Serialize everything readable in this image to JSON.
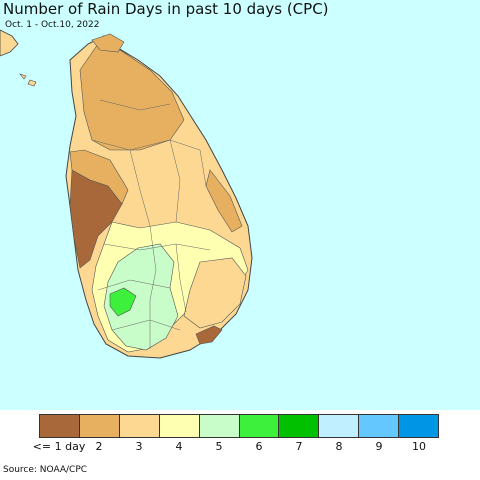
{
  "title": "Number of Rain Days in past 10 days (CPC)",
  "subtitle": "Oct. 1 - Oct.10, 2022",
  "source": "Source: NOAA/CPC",
  "colors": {
    "sea": "#ccffff",
    "border": "#444444"
  },
  "legend": {
    "items": [
      {
        "label": "<= 1 day",
        "color": "#a8683a"
      },
      {
        "label": "2",
        "color": "#e6b060"
      },
      {
        "label": "3",
        "color": "#fdd892"
      },
      {
        "label": "4",
        "color": "#ffffb2"
      },
      {
        "label": "5",
        "color": "#c8fcc8"
      },
      {
        "label": "6",
        "color": "#3cf03c"
      },
      {
        "label": "7",
        "color": "#00c000"
      },
      {
        "label": "8",
        "color": "#c0f0ff"
      },
      {
        "label": "9",
        "color": "#64c8ff"
      },
      {
        "label": "10",
        "color": "#0096e6"
      }
    ]
  }
}
